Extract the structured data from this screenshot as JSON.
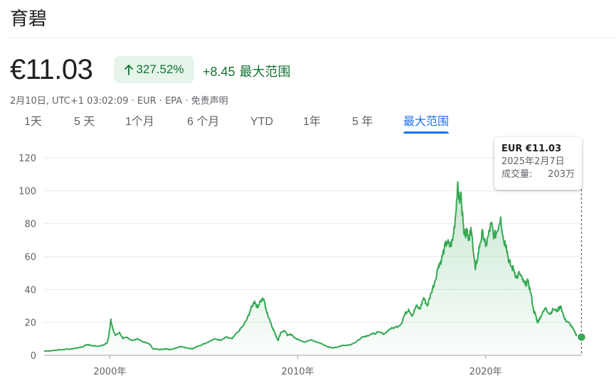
{
  "header": {
    "stock_name": "育碧",
    "price": "€11.03",
    "percent_change": "327.52%",
    "abs_change": "+8.45",
    "change_range": "最大范围",
    "meta": "2月10日, UTC+1 03:02:09 · EUR · EPA · 免责声明"
  },
  "tabs": [
    "1天",
    "5 天",
    "1个月",
    "6 个月",
    "YTD",
    "1年",
    "5 年",
    "最大范围"
  ],
  "active_tab": "最大范围",
  "tooltip": {
    "price": "EUR €11.03",
    "date": "2025年2月7日",
    "volume_label": "成交量:",
    "volume_value": "203万"
  },
  "colors": {
    "line": "#34a853",
    "positive": "#137333",
    "positive_bg": "#e6f4ea",
    "accent": "#1a73e8"
  },
  "chart_data": {
    "type": "area",
    "ylim": [
      0,
      120
    ],
    "yticks": [
      0,
      20,
      40,
      60,
      80,
      100,
      120
    ],
    "ytick_labels": [
      "0",
      "20",
      "40",
      "60",
      "80",
      "100",
      "120"
    ],
    "xlim": [
      1996.5,
      2025.12
    ],
    "xticks": [
      2000,
      2010,
      2020
    ],
    "xtick_labels": [
      "2000年",
      "2010年",
      "2020年"
    ],
    "grid": true,
    "series": [
      {
        "values": [
          [
            1996.5,
            2.5
          ],
          [
            1997.0,
            3.0
          ],
          [
            1997.5,
            3.5
          ],
          [
            1998.0,
            4.0
          ],
          [
            1998.5,
            5.0
          ],
          [
            1998.8,
            6.5
          ],
          [
            1999.0,
            6.0
          ],
          [
            1999.3,
            5.5
          ],
          [
            1999.6,
            6.0
          ],
          [
            1999.85,
            7.5
          ],
          [
            1999.95,
            12.0
          ],
          [
            2000.05,
            22.0
          ],
          [
            2000.15,
            16.0
          ],
          [
            2000.3,
            12.0
          ],
          [
            2000.5,
            14.0
          ],
          [
            2000.7,
            10.0
          ],
          [
            2000.9,
            11.0
          ],
          [
            2001.2,
            9.0
          ],
          [
            2001.5,
            10.0
          ],
          [
            2001.8,
            8.0
          ],
          [
            2002.1,
            7.0
          ],
          [
            2002.3,
            4.0
          ],
          [
            2002.6,
            3.5
          ],
          [
            2002.9,
            4.0
          ],
          [
            2003.2,
            3.5
          ],
          [
            2003.5,
            4.5
          ],
          [
            2003.8,
            5.5
          ],
          [
            2004.1,
            4.5
          ],
          [
            2004.4,
            4.0
          ],
          [
            2004.7,
            5.5
          ],
          [
            2005.0,
            7.0
          ],
          [
            2005.3,
            8.5
          ],
          [
            2005.6,
            10.0
          ],
          [
            2005.9,
            9.0
          ],
          [
            2006.2,
            11.0
          ],
          [
            2006.5,
            10.0
          ],
          [
            2006.8,
            14.0
          ],
          [
            2007.1,
            18.0
          ],
          [
            2007.3,
            22.0
          ],
          [
            2007.5,
            28.0
          ],
          [
            2007.7,
            33.0
          ],
          [
            2007.85,
            29.0
          ],
          [
            2008.0,
            33.0
          ],
          [
            2008.2,
            34.0
          ],
          [
            2008.35,
            26.0
          ],
          [
            2008.5,
            22.0
          ],
          [
            2008.65,
            17.0
          ],
          [
            2008.8,
            13.0
          ],
          [
            2008.95,
            9.0
          ],
          [
            2009.1,
            14.0
          ],
          [
            2009.3,
            15.0
          ],
          [
            2009.45,
            12.0
          ],
          [
            2009.6,
            13.0
          ],
          [
            2009.8,
            11.0
          ],
          [
            2010.1,
            9.0
          ],
          [
            2010.4,
            8.0
          ],
          [
            2010.7,
            9.5
          ],
          [
            2011.0,
            8.0
          ],
          [
            2011.3,
            7.0
          ],
          [
            2011.6,
            5.0
          ],
          [
            2011.9,
            4.5
          ],
          [
            2012.2,
            5.5
          ],
          [
            2012.5,
            6.0
          ],
          [
            2012.8,
            6.5
          ],
          [
            2013.1,
            8.0
          ],
          [
            2013.4,
            11.0
          ],
          [
            2013.7,
            12.0
          ],
          [
            2014.0,
            13.0
          ],
          [
            2014.3,
            14.0
          ],
          [
            2014.6,
            13.0
          ],
          [
            2014.9,
            16.0
          ],
          [
            2015.2,
            17.0
          ],
          [
            2015.5,
            19.0
          ],
          [
            2015.7,
            25.0
          ],
          [
            2015.9,
            28.0
          ],
          [
            2016.1,
            24.0
          ],
          [
            2016.3,
            30.0
          ],
          [
            2016.5,
            28.0
          ],
          [
            2016.7,
            35.0
          ],
          [
            2016.9,
            30.0
          ],
          [
            2017.1,
            38.0
          ],
          [
            2017.3,
            45.0
          ],
          [
            2017.5,
            55.0
          ],
          [
            2017.65,
            58.0
          ],
          [
            2017.8,
            65.0
          ],
          [
            2017.95,
            69.0
          ],
          [
            2018.1,
            66.0
          ],
          [
            2018.25,
            70.0
          ],
          [
            2018.4,
            85.0
          ],
          [
            2018.5,
            103.0
          ],
          [
            2018.6,
            94.0
          ],
          [
            2018.7,
            97.0
          ],
          [
            2018.8,
            80.0
          ],
          [
            2018.9,
            73.0
          ],
          [
            2019.0,
            77.0
          ],
          [
            2019.1,
            71.0
          ],
          [
            2019.2,
            76.0
          ],
          [
            2019.3,
            70.0
          ],
          [
            2019.45,
            52.0
          ],
          [
            2019.55,
            58.0
          ],
          [
            2019.7,
            68.0
          ],
          [
            2019.85,
            75.0
          ],
          [
            2020.0,
            66.0
          ],
          [
            2020.15,
            73.0
          ],
          [
            2020.3,
            80.0
          ],
          [
            2020.45,
            72.0
          ],
          [
            2020.6,
            75.0
          ],
          [
            2020.8,
            84.0
          ],
          [
            2020.95,
            70.0
          ],
          [
            2021.1,
            67.0
          ],
          [
            2021.2,
            59.0
          ],
          [
            2021.35,
            54.0
          ],
          [
            2021.5,
            52.0
          ],
          [
            2021.65,
            47.0
          ],
          [
            2021.8,
            50.0
          ],
          [
            2021.95,
            46.0
          ],
          [
            2022.1,
            43.0
          ],
          [
            2022.25,
            45.0
          ],
          [
            2022.4,
            38.0
          ],
          [
            2022.55,
            27.0
          ],
          [
            2022.65,
            25.0
          ],
          [
            2022.75,
            20.0
          ],
          [
            2022.85,
            22.0
          ],
          [
            2023.0,
            25.0
          ],
          [
            2023.2,
            29.0
          ],
          [
            2023.4,
            25.0
          ],
          [
            2023.6,
            28.0
          ],
          [
            2023.8,
            27.0
          ],
          [
            2024.0,
            30.0
          ],
          [
            2024.2,
            22.0
          ],
          [
            2024.4,
            20.0
          ],
          [
            2024.55,
            18.0
          ],
          [
            2024.7,
            15.0
          ],
          [
            2024.85,
            12.0
          ],
          [
            2025.0,
            11.5
          ],
          [
            2025.1,
            11.03
          ]
        ]
      }
    ]
  }
}
